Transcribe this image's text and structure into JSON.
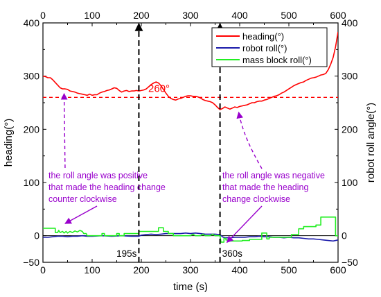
{
  "chart_data": {
    "type": "line",
    "title": "",
    "xlabel": "time (s)",
    "ylabel_left": "heading(°)",
    "ylabel_right": "robot roll angle(°)",
    "xlim": [
      0,
      600
    ],
    "ylim": [
      -50,
      400
    ],
    "top_axis_ticks": [
      0,
      100,
      200,
      300,
      400,
      500,
      600
    ],
    "bottom_axis_ticks": [
      0,
      100,
      200,
      300,
      400,
      500,
      600
    ],
    "left_axis_ticks": [
      -50,
      0,
      100,
      200,
      300,
      400
    ],
    "right_axis_ticks": [
      -50,
      0,
      100,
      200,
      300,
      400
    ],
    "grid": false,
    "legend_position": "top-right",
    "series": [
      {
        "name": "heading(°)",
        "color": "#ff0000",
        "points": [
          [
            0,
            300
          ],
          [
            5,
            299
          ],
          [
            10,
            297
          ],
          [
            15,
            297
          ],
          [
            20,
            293
          ],
          [
            25,
            288
          ],
          [
            30,
            283
          ],
          [
            35,
            278
          ],
          [
            40,
            276
          ],
          [
            45,
            276
          ],
          [
            50,
            275
          ],
          [
            55,
            272
          ],
          [
            60,
            271
          ],
          [
            65,
            270
          ],
          [
            70,
            268
          ],
          [
            75,
            267
          ],
          [
            80,
            266
          ],
          [
            85,
            265
          ],
          [
            90,
            264
          ],
          [
            95,
            266
          ],
          [
            100,
            264
          ],
          [
            105,
            265
          ],
          [
            110,
            265
          ],
          [
            115,
            268
          ],
          [
            120,
            270
          ],
          [
            125,
            271
          ],
          [
            130,
            273
          ],
          [
            135,
            274
          ],
          [
            140,
            276
          ],
          [
            145,
            278
          ],
          [
            150,
            277
          ],
          [
            155,
            273
          ],
          [
            160,
            270
          ],
          [
            165,
            272
          ],
          [
            170,
            273
          ],
          [
            175,
            271
          ],
          [
            180,
            272
          ],
          [
            185,
            272
          ],
          [
            190,
            273
          ],
          [
            195,
            272
          ],
          [
            200,
            273
          ],
          [
            205,
            274
          ],
          [
            210,
            276
          ],
          [
            215,
            280
          ],
          [
            220,
            284
          ],
          [
            225,
            287
          ],
          [
            230,
            289
          ],
          [
            235,
            287
          ],
          [
            240,
            282
          ],
          [
            245,
            275
          ],
          [
            250,
            268
          ],
          [
            255,
            262
          ],
          [
            260,
            258
          ],
          [
            265,
            256
          ],
          [
            270,
            255
          ],
          [
            275,
            257
          ],
          [
            280,
            258
          ],
          [
            285,
            260
          ],
          [
            290,
            262
          ],
          [
            295,
            263
          ],
          [
            300,
            263
          ],
          [
            305,
            262
          ],
          [
            310,
            262
          ],
          [
            315,
            261
          ],
          [
            320,
            259
          ],
          [
            325,
            256
          ],
          [
            330,
            254
          ],
          [
            335,
            253
          ],
          [
            340,
            252
          ],
          [
            345,
            250
          ],
          [
            350,
            246
          ],
          [
            355,
            241
          ],
          [
            360,
            237
          ],
          [
            365,
            239
          ],
          [
            370,
            242
          ],
          [
            375,
            240
          ],
          [
            380,
            238
          ],
          [
            385,
            240
          ],
          [
            390,
            242
          ],
          [
            395,
            241
          ],
          [
            400,
            243
          ],
          [
            405,
            244
          ],
          [
            410,
            245
          ],
          [
            415,
            246
          ],
          [
            420,
            248
          ],
          [
            425,
            250
          ],
          [
            430,
            250
          ],
          [
            435,
            252
          ],
          [
            440,
            253
          ],
          [
            445,
            253
          ],
          [
            450,
            255
          ],
          [
            455,
            256
          ],
          [
            460,
            258
          ],
          [
            465,
            260
          ],
          [
            470,
            262
          ],
          [
            475,
            263
          ],
          [
            480,
            265
          ],
          [
            485,
            268
          ],
          [
            490,
            270
          ],
          [
            495,
            273
          ],
          [
            500,
            276
          ],
          [
            505,
            279
          ],
          [
            510,
            282
          ],
          [
            515,
            284
          ],
          [
            520,
            286
          ],
          [
            525,
            288
          ],
          [
            530,
            289
          ],
          [
            535,
            292
          ],
          [
            540,
            294
          ],
          [
            545,
            296
          ],
          [
            550,
            297
          ],
          [
            555,
            298
          ],
          [
            560,
            300
          ],
          [
            565,
            302
          ],
          [
            570,
            303
          ],
          [
            575,
            305
          ],
          [
            580,
            312
          ],
          [
            585,
            322
          ],
          [
            590,
            335
          ],
          [
            595,
            355
          ],
          [
            600,
            383
          ]
        ]
      },
      {
        "name": "robot roll(°)",
        "color": "#1a1aaa",
        "points": [
          [
            0,
            -3
          ],
          [
            10,
            -3
          ],
          [
            20,
            -2
          ],
          [
            30,
            -1
          ],
          [
            40,
            -1
          ],
          [
            50,
            -2
          ],
          [
            60,
            -1
          ],
          [
            70,
            -1
          ],
          [
            80,
            0
          ],
          [
            90,
            -1
          ],
          [
            100,
            -1
          ],
          [
            120,
            0
          ],
          [
            140,
            -1
          ],
          [
            160,
            0
          ],
          [
            180,
            -1
          ],
          [
            195,
            -1
          ],
          [
            200,
            1
          ],
          [
            210,
            2
          ],
          [
            220,
            3
          ],
          [
            230,
            2
          ],
          [
            240,
            3
          ],
          [
            250,
            4
          ],
          [
            260,
            4
          ],
          [
            270,
            4
          ],
          [
            280,
            4
          ],
          [
            290,
            5
          ],
          [
            300,
            4
          ],
          [
            310,
            5
          ],
          [
            320,
            4
          ],
          [
            330,
            3
          ],
          [
            340,
            3
          ],
          [
            350,
            3
          ],
          [
            360,
            2
          ],
          [
            365,
            -2
          ],
          [
            370,
            -4
          ],
          [
            380,
            -4
          ],
          [
            390,
            -3
          ],
          [
            400,
            -3
          ],
          [
            410,
            -3
          ],
          [
            420,
            -2
          ],
          [
            430,
            -2
          ],
          [
            440,
            -1
          ],
          [
            450,
            -2
          ],
          [
            460,
            -2
          ],
          [
            470,
            -3
          ],
          [
            480,
            -3
          ],
          [
            490,
            -4
          ],
          [
            500,
            -3
          ],
          [
            510,
            -4
          ],
          [
            520,
            -4
          ],
          [
            530,
            -5
          ],
          [
            540,
            -6
          ],
          [
            550,
            -6
          ],
          [
            560,
            -7
          ],
          [
            570,
            -8
          ],
          [
            580,
            -9
          ],
          [
            590,
            -10
          ],
          [
            600,
            -8
          ]
        ]
      },
      {
        "name": "mass block roll(°)",
        "color": "#22ee22",
        "points": [
          [
            0,
            14
          ],
          [
            25,
            14
          ],
          [
            25,
            6
          ],
          [
            30,
            6
          ],
          [
            32,
            10
          ],
          [
            35,
            6
          ],
          [
            40,
            8
          ],
          [
            43,
            5
          ],
          [
            47,
            8
          ],
          [
            50,
            5
          ],
          [
            55,
            8
          ],
          [
            60,
            6
          ],
          [
            65,
            9
          ],
          [
            70,
            7
          ],
          [
            75,
            10
          ],
          [
            80,
            8
          ],
          [
            83,
            4
          ],
          [
            88,
            4
          ],
          [
            90,
            0
          ],
          [
            120,
            0
          ],
          [
            120,
            4
          ],
          [
            125,
            4
          ],
          [
            125,
            0
          ],
          [
            150,
            0
          ],
          [
            150,
            4
          ],
          [
            155,
            4
          ],
          [
            155,
            0
          ],
          [
            165,
            0
          ],
          [
            165,
            4
          ],
          [
            195,
            4
          ],
          [
            195,
            8
          ],
          [
            235,
            8
          ],
          [
            235,
            15
          ],
          [
            245,
            15
          ],
          [
            245,
            8
          ],
          [
            255,
            8
          ],
          [
            255,
            4
          ],
          [
            265,
            4
          ],
          [
            265,
            0
          ],
          [
            300,
            0
          ],
          [
            305,
            3
          ],
          [
            310,
            0
          ],
          [
            320,
            0
          ],
          [
            325,
            3
          ],
          [
            330,
            0
          ],
          [
            340,
            0
          ],
          [
            345,
            3
          ],
          [
            350,
            0
          ],
          [
            360,
            0
          ],
          [
            362,
            -12
          ],
          [
            368,
            -12
          ],
          [
            368,
            -5
          ],
          [
            372,
            -5
          ],
          [
            372,
            -8
          ],
          [
            380,
            -8
          ],
          [
            380,
            -10
          ],
          [
            405,
            -10
          ],
          [
            405,
            -9
          ],
          [
            420,
            -9
          ],
          [
            420,
            -7
          ],
          [
            445,
            -7
          ],
          [
            445,
            5
          ],
          [
            455,
            5
          ],
          [
            455,
            -6
          ],
          [
            460,
            -6
          ],
          [
            460,
            -3
          ],
          [
            505,
            -3
          ],
          [
            505,
            2
          ],
          [
            520,
            2
          ],
          [
            520,
            13
          ],
          [
            530,
            13
          ],
          [
            530,
            17
          ],
          [
            555,
            17
          ],
          [
            555,
            20
          ],
          [
            565,
            20
          ],
          [
            565,
            35
          ],
          [
            595,
            35
          ],
          [
            595,
            0
          ],
          [
            600,
            0
          ]
        ]
      }
    ],
    "reference_line": {
      "y": 260,
      "label": "260°",
      "color": "#ff0000",
      "style": "dashed"
    },
    "vertical_lines": [
      {
        "x": 195,
        "label": "195s"
      },
      {
        "x": 360,
        "label": "360s"
      }
    ],
    "annotations": [
      {
        "id": "left",
        "lines": [
          "the roll angle was positive",
          "that made the heading change",
          "counter clockwise"
        ],
        "color": "#9900cc"
      },
      {
        "id": "right",
        "lines": [
          "the roll angle was negative",
          "that made the heading",
          "change clockwise"
        ],
        "color": "#9900cc"
      }
    ]
  }
}
